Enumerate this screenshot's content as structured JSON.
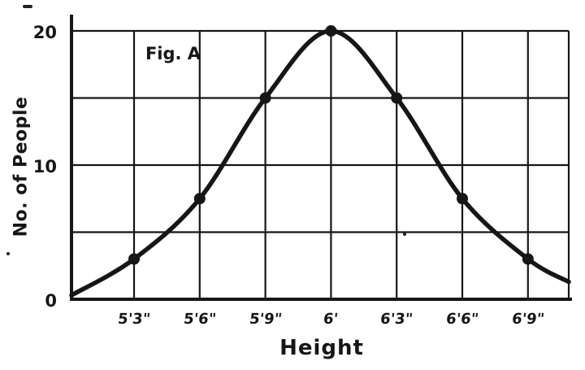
{
  "figure": {
    "fig_label": "Fig. A",
    "xlabel": "Height",
    "ylabel": "No. of People"
  },
  "chart_data": {
    "type": "line",
    "title": "Fig. A",
    "xlabel": "Height",
    "ylabel": "No. of People",
    "categories": [
      "5'3\"",
      "5'6\"",
      "5'9\"",
      "6'",
      "6'3\"",
      "6'6\"",
      "6'9\""
    ],
    "values": [
      3,
      7.5,
      15,
      20,
      15,
      7.5,
      3
    ],
    "ylim": [
      0,
      20
    ],
    "y_tick_labels": [
      20,
      10,
      0
    ],
    "y_gridline_values": [
      0,
      5,
      10,
      15,
      20
    ],
    "grid": true,
    "legend_position": "none",
    "marker": "filled-circle",
    "curve_shape": "bell",
    "ink_color": "#161616",
    "background_color": "#ffffff"
  }
}
